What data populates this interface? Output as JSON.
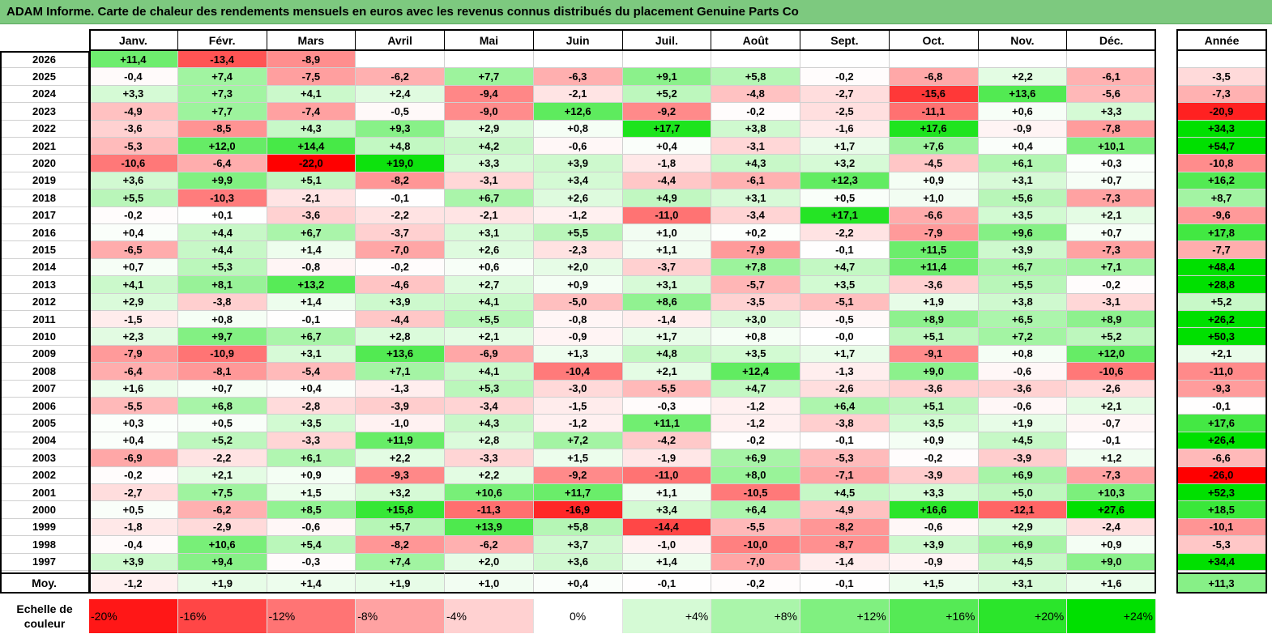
{
  "title": "ADAM Informe. Carte de chaleur des rendements mensuels en euros avec les revenus connus distribués du placement Genuine Parts Co",
  "chart_data": {
    "type": "heatmap",
    "months": [
      "Janv.",
      "Févr.",
      "Mars",
      "Avril",
      "Mai",
      "Juin",
      "Juil.",
      "Août",
      "Sept.",
      "Oct.",
      "Nov.",
      "Déc."
    ],
    "year_header": "Année",
    "avg_label": "Moy.",
    "rows": [
      {
        "year": "2026",
        "values": [
          "+11,4",
          "-13,4",
          "-8,9",
          "",
          "",
          "",
          "",
          "",
          "",
          "",
          "",
          ""
        ],
        "annual": ""
      },
      {
        "year": "2025",
        "values": [
          "-0,4",
          "+7,4",
          "-7,5",
          "-6,2",
          "+7,7",
          "-6,3",
          "+9,1",
          "+5,8",
          "-0,2",
          "-6,8",
          "+2,2",
          "-6,1"
        ],
        "annual": "-3,5"
      },
      {
        "year": "2024",
        "values": [
          "+3,3",
          "+7,3",
          "+4,1",
          "+2,4",
          "-9,4",
          "-2,1",
          "+5,2",
          "-4,8",
          "-2,7",
          "-15,6",
          "+13,6",
          "-5,6"
        ],
        "annual": "-7,3"
      },
      {
        "year": "2023",
        "values": [
          "-4,9",
          "+7,7",
          "-7,4",
          "-0,5",
          "-9,0",
          "+12,6",
          "-9,2",
          "-0,2",
          "-2,5",
          "-11,1",
          "+0,6",
          "+3,3"
        ],
        "annual": "-20,9"
      },
      {
        "year": "2022",
        "values": [
          "-3,6",
          "-8,5",
          "+4,3",
          "+9,3",
          "+2,9",
          "+0,8",
          "+17,7",
          "+3,8",
          "-1,6",
          "+17,6",
          "-0,9",
          "-7,8"
        ],
        "annual": "+34,3"
      },
      {
        "year": "2021",
        "values": [
          "-5,3",
          "+12,0",
          "+14,4",
          "+4,8",
          "+4,2",
          "-0,6",
          "+0,4",
          "-3,1",
          "+1,7",
          "+7,6",
          "+0,4",
          "+10,1"
        ],
        "annual": "+54,7"
      },
      {
        "year": "2020",
        "values": [
          "-10,6",
          "-6,4",
          "-22,0",
          "+19,0",
          "+3,3",
          "+3,9",
          "-1,8",
          "+4,3",
          "+3,2",
          "-4,5",
          "+6,1",
          "+0,3"
        ],
        "annual": "-10,8"
      },
      {
        "year": "2019",
        "values": [
          "+3,6",
          "+9,9",
          "+5,1",
          "-8,2",
          "-3,1",
          "+3,4",
          "-4,4",
          "-6,1",
          "+12,3",
          "+0,9",
          "+3,1",
          "+0,7"
        ],
        "annual": "+16,2"
      },
      {
        "year": "2018",
        "values": [
          "+5,5",
          "-10,3",
          "-2,1",
          "-0,1",
          "+6,7",
          "+2,6",
          "+4,9",
          "+3,1",
          "+0,5",
          "+1,0",
          "+5,6",
          "-7,3"
        ],
        "annual": "+8,7"
      },
      {
        "year": "2017",
        "values": [
          "-0,2",
          "+0,1",
          "-3,6",
          "-2,2",
          "-2,1",
          "-1,2",
          "-11,0",
          "-3,4",
          "+17,1",
          "-6,6",
          "+3,5",
          "+2,1"
        ],
        "annual": "-9,6"
      },
      {
        "year": "2016",
        "values": [
          "+0,4",
          "+4,4",
          "+6,7",
          "-3,7",
          "+3,1",
          "+5,5",
          "+1,0",
          "+0,2",
          "-2,2",
          "-7,9",
          "+9,6",
          "+0,7"
        ],
        "annual": "+17,8"
      },
      {
        "year": "2015",
        "values": [
          "-6,5",
          "+4,4",
          "+1,4",
          "-7,0",
          "+2,6",
          "-2,3",
          "+1,1",
          "-7,9",
          "-0,1",
          "+11,5",
          "+3,9",
          "-7,3"
        ],
        "annual": "-7,7"
      },
      {
        "year": "2014",
        "values": [
          "+0,7",
          "+5,3",
          "-0,8",
          "-0,2",
          "+0,6",
          "+2,0",
          "-3,7",
          "+7,8",
          "+4,7",
          "+11,4",
          "+6,7",
          "+7,1"
        ],
        "annual": "+48,4"
      },
      {
        "year": "2013",
        "values": [
          "+4,1",
          "+8,1",
          "+13,2",
          "-4,6",
          "+2,7",
          "+0,9",
          "+3,1",
          "-5,7",
          "+3,5",
          "-3,6",
          "+5,5",
          "-0,2"
        ],
        "annual": "+28,8"
      },
      {
        "year": "2012",
        "values": [
          "+2,9",
          "-3,8",
          "+1,4",
          "+3,9",
          "+4,1",
          "-5,0",
          "+8,6",
          "-3,5",
          "-5,1",
          "+1,9",
          "+3,8",
          "-3,1"
        ],
        "annual": "+5,2"
      },
      {
        "year": "2011",
        "values": [
          "-1,5",
          "+0,8",
          "-0,1",
          "-4,4",
          "+5,5",
          "-0,8",
          "-1,4",
          "+3,0",
          "-0,5",
          "+8,9",
          "+6,5",
          "+8,9"
        ],
        "annual": "+26,2"
      },
      {
        "year": "2010",
        "values": [
          "+2,3",
          "+9,7",
          "+6,7",
          "+2,8",
          "+2,1",
          "-0,9",
          "+1,7",
          "+0,8",
          "-0,0",
          "+5,1",
          "+7,2",
          "+5,2"
        ],
        "annual": "+50,3"
      },
      {
        "year": "2009",
        "values": [
          "-7,9",
          "-10,9",
          "+3,1",
          "+13,6",
          "-6,9",
          "+1,3",
          "+4,8",
          "+3,5",
          "+1,7",
          "-9,1",
          "+0,8",
          "+12,0"
        ],
        "annual": "+2,1"
      },
      {
        "year": "2008",
        "values": [
          "-6,4",
          "-8,1",
          "-5,4",
          "+7,1",
          "+4,1",
          "-10,4",
          "+2,1",
          "+12,4",
          "-1,3",
          "+9,0",
          "-0,6",
          "-10,6"
        ],
        "annual": "-11,0"
      },
      {
        "year": "2007",
        "values": [
          "+1,6",
          "+0,7",
          "+0,4",
          "-1,3",
          "+5,3",
          "-3,0",
          "-5,5",
          "+4,7",
          "-2,6",
          "-3,6",
          "-3,6",
          "-2,6"
        ],
        "annual": "-9,3"
      },
      {
        "year": "2006",
        "values": [
          "-5,5",
          "+6,8",
          "-2,8",
          "-3,9",
          "-3,4",
          "-1,5",
          "-0,3",
          "-1,2",
          "+6,4",
          "+5,1",
          "-0,6",
          "+2,1"
        ],
        "annual": "-0,1"
      },
      {
        "year": "2005",
        "values": [
          "+0,3",
          "+0,5",
          "+3,5",
          "-1,0",
          "+4,3",
          "-1,2",
          "+11,1",
          "-1,2",
          "-3,8",
          "+3,5",
          "+1,9",
          "-0,7"
        ],
        "annual": "+17,6"
      },
      {
        "year": "2004",
        "values": [
          "+0,4",
          "+5,2",
          "-3,3",
          "+11,9",
          "+2,8",
          "+7,2",
          "-4,2",
          "-0,2",
          "-0,1",
          "+0,9",
          "+4,5",
          "-0,1"
        ],
        "annual": "+26,4"
      },
      {
        "year": "2003",
        "values": [
          "-6,9",
          "-2,2",
          "+6,1",
          "+2,2",
          "-3,3",
          "+1,5",
          "-1,9",
          "+6,9",
          "-5,3",
          "-0,2",
          "-3,9",
          "+1,2"
        ],
        "annual": "-6,6"
      },
      {
        "year": "2002",
        "values": [
          "-0,2",
          "+2,1",
          "+0,9",
          "-9,3",
          "+2,2",
          "-9,2",
          "-11,0",
          "+8,0",
          "-7,1",
          "-3,9",
          "+6,9",
          "-7,3"
        ],
        "annual": "-26,0"
      },
      {
        "year": "2001",
        "values": [
          "-2,7",
          "+7,5",
          "+1,5",
          "+3,2",
          "+10,6",
          "+11,7",
          "+1,1",
          "-10,5",
          "+4,5",
          "+3,3",
          "+5,0",
          "+10,3"
        ],
        "annual": "+52,3"
      },
      {
        "year": "2000",
        "values": [
          "+0,5",
          "-6,2",
          "+8,5",
          "+15,8",
          "-11,3",
          "-16,9",
          "+3,4",
          "+6,4",
          "-4,9",
          "+16,6",
          "-12,1",
          "+27,6"
        ],
        "annual": "+18,5"
      },
      {
        "year": "1999",
        "values": [
          "-1,8",
          "-2,9",
          "-0,6",
          "+5,7",
          "+13,9",
          "+5,8",
          "-14,4",
          "-5,5",
          "-8,2",
          "-0,6",
          "+2,9",
          "-2,4"
        ],
        "annual": "-10,1"
      },
      {
        "year": "1998",
        "values": [
          "-0,4",
          "+10,6",
          "+5,4",
          "-8,2",
          "-6,2",
          "+3,7",
          "-1,0",
          "-10,0",
          "-8,7",
          "+3,9",
          "+6,9",
          "+0,9"
        ],
        "annual": "-5,3"
      },
      {
        "year": "1997",
        "values": [
          "+3,9",
          "+9,4",
          "-0,3",
          "+7,4",
          "+2,0",
          "+3,6",
          "+1,4",
          "-7,0",
          "-1,4",
          "-0,9",
          "+4,5",
          "+9,0"
        ],
        "annual": "+34,4"
      }
    ],
    "average": {
      "values": [
        "-1,2",
        "+1,9",
        "+1,4",
        "+1,9",
        "+1,0",
        "+0,4",
        "-0,1",
        "-0,2",
        "-0,1",
        "+1,5",
        "+3,1",
        "+1,6"
      ],
      "annual": "+11,3"
    },
    "scale_label_line1": "Echelle de",
    "scale_label_line2": "couleur",
    "scale": [
      "-20%",
      "-16%",
      "-12%",
      "-8%",
      "-4%",
      "0%",
      "+4%",
      "+8%",
      "+12%",
      "+16%",
      "+20%",
      "+24%"
    ],
    "colors": {
      "negative_max": "#ff0000",
      "neutral": "#ffffff",
      "positive_max": "#00e000",
      "title_bg": "#7dc97f"
    }
  }
}
